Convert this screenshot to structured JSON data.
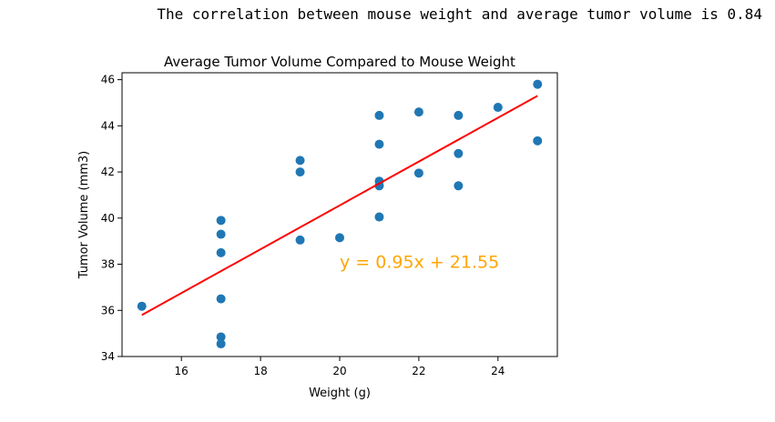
{
  "output_text": "The correlation between mouse weight and average tumor volume is 0.84",
  "chart_data": {
    "type": "scatter",
    "title": "Average Tumor Volume Compared to Mouse Weight",
    "xlabel": "Weight (g)",
    "ylabel": "Tumor Volume (mm3)",
    "xlim": [
      14.5,
      25.5
    ],
    "ylim": [
      34,
      46.3
    ],
    "xticks": [
      16,
      18,
      20,
      22,
      24
    ],
    "yticks": [
      34,
      36,
      38,
      40,
      42,
      44,
      46
    ],
    "grid": false,
    "points": [
      {
        "x": 15,
        "y": 36.18
      },
      {
        "x": 17,
        "y": 39.9
      },
      {
        "x": 17,
        "y": 39.3
      },
      {
        "x": 17,
        "y": 38.5
      },
      {
        "x": 17,
        "y": 36.5
      },
      {
        "x": 17,
        "y": 34.85
      },
      {
        "x": 17,
        "y": 34.55
      },
      {
        "x": 19,
        "y": 42.5
      },
      {
        "x": 19,
        "y": 42.0
      },
      {
        "x": 19,
        "y": 39.05
      },
      {
        "x": 20,
        "y": 39.15
      },
      {
        "x": 21,
        "y": 44.45
      },
      {
        "x": 21,
        "y": 43.2
      },
      {
        "x": 21,
        "y": 41.6
      },
      {
        "x": 21,
        "y": 41.4
      },
      {
        "x": 21,
        "y": 40.05
      },
      {
        "x": 22,
        "y": 44.6
      },
      {
        "x": 22,
        "y": 41.95
      },
      {
        "x": 23,
        "y": 44.45
      },
      {
        "x": 23,
        "y": 42.8
      },
      {
        "x": 23,
        "y": 41.4
      },
      {
        "x": 24,
        "y": 44.8
      },
      {
        "x": 25,
        "y": 45.8
      },
      {
        "x": 25,
        "y": 43.35
      }
    ],
    "point_color": "#1f77b4",
    "regression": {
      "slope": 0.95,
      "intercept": 21.55,
      "x_range": [
        15,
        25
      ],
      "color": "#ff0000"
    },
    "annotation": {
      "text": "y = 0.95x + 21.55",
      "x": 20,
      "y": 38,
      "color": "#ffa500"
    }
  }
}
